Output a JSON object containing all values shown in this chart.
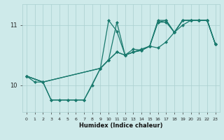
{
  "xlabel": "Humidex (Indice chaleur)",
  "bg_color": "#ceeaea",
  "line_color": "#1a7a6e",
  "grid_color": "#aacfcf",
  "xlim": [
    -0.5,
    23.5
  ],
  "ylim": [
    9.55,
    11.35
  ],
  "yticks": [
    10,
    11
  ],
  "xticks": [
    0,
    1,
    2,
    3,
    4,
    5,
    6,
    7,
    8,
    9,
    10,
    11,
    12,
    13,
    14,
    15,
    16,
    17,
    18,
    19,
    20,
    21,
    22,
    23
  ],
  "series1": {
    "x": [
      0,
      2,
      9,
      10,
      11,
      12,
      13,
      14,
      15,
      16,
      17,
      18,
      19,
      20,
      21,
      22,
      23
    ],
    "y": [
      10.15,
      10.05,
      10.28,
      10.42,
      10.55,
      10.5,
      10.55,
      10.58,
      10.65,
      10.62,
      10.72,
      10.88,
      11.0,
      11.08,
      11.08,
      11.08,
      10.68
    ]
  },
  "series2": {
    "x": [
      0,
      1,
      2,
      3,
      4,
      5,
      6,
      7,
      8,
      9,
      10,
      11,
      12,
      13,
      14,
      15,
      16,
      17,
      18,
      19,
      20,
      21,
      22,
      23
    ],
    "y": [
      10.15,
      10.05,
      10.05,
      9.75,
      9.75,
      9.75,
      9.75,
      9.75,
      10.0,
      10.28,
      10.42,
      10.55,
      10.5,
      10.55,
      10.58,
      10.65,
      11.05,
      11.08,
      10.88,
      11.08,
      11.08,
      11.08,
      11.08,
      10.68
    ]
  },
  "series3": {
    "x": [
      0,
      2,
      3,
      4,
      5,
      6,
      7,
      9,
      10,
      11,
      12,
      13,
      14,
      15,
      16,
      17,
      18,
      19,
      20,
      21,
      22,
      23
    ],
    "y": [
      10.15,
      10.05,
      9.75,
      9.75,
      9.75,
      9.75,
      9.75,
      10.28,
      10.42,
      11.05,
      10.5,
      10.6,
      10.58,
      10.65,
      11.05,
      11.05,
      10.88,
      11.08,
      11.08,
      11.08,
      11.08,
      10.68
    ]
  },
  "series4": {
    "x": [
      0,
      2,
      9,
      10,
      11,
      12,
      13,
      14,
      15,
      16,
      17,
      18,
      19,
      20,
      21,
      22,
      23
    ],
    "y": [
      10.15,
      10.05,
      10.28,
      11.08,
      10.9,
      10.5,
      10.55,
      10.6,
      10.65,
      11.08,
      11.08,
      10.88,
      11.08,
      11.08,
      11.08,
      11.08,
      10.68
    ]
  }
}
